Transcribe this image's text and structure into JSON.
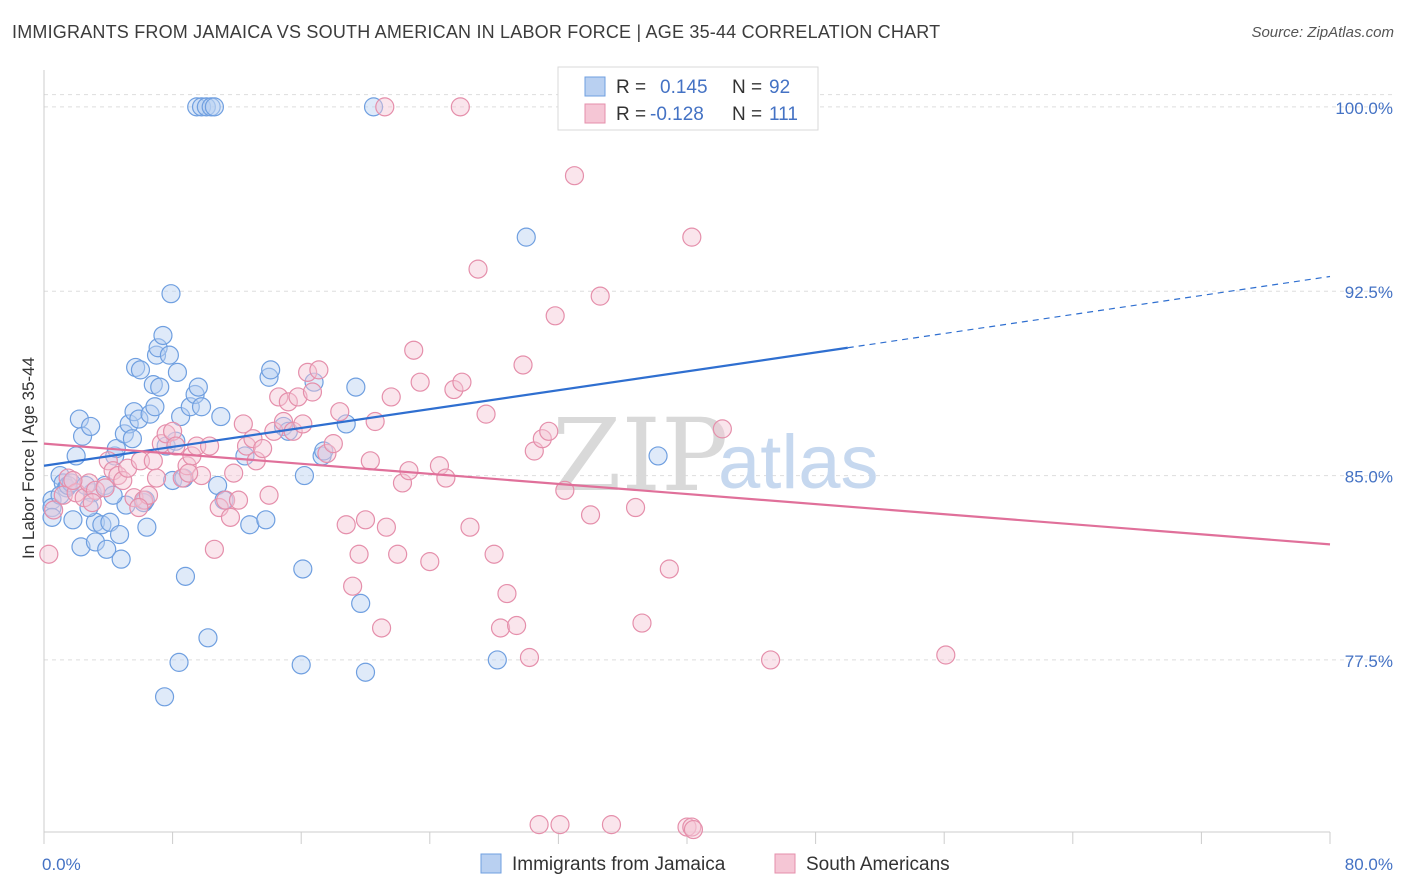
{
  "title": "IMMIGRANTS FROM JAMAICA VS SOUTH AMERICAN IN LABOR FORCE | AGE 35-44 CORRELATION CHART",
  "source": "Source: ZipAtlas.com",
  "watermark": {
    "zip": "ZIP",
    "atlas": "atlas"
  },
  "legend": {
    "r_label": "R =",
    "n_label": "N =",
    "rows": [
      {
        "r": "0.145",
        "n": "92"
      },
      {
        "r": "-0.128",
        "n": "111"
      }
    ]
  },
  "chart_data": {
    "type": "scatter",
    "ylabel": "In Labor Force | Age 35-44",
    "xlim": [
      0,
      80
    ],
    "ylim": [
      70.5,
      101.5
    ],
    "x_tick_labels": [
      "0.0%",
      "80.0%"
    ],
    "y_ticks": [
      77.5,
      85.0,
      92.5,
      100.0
    ],
    "y_tick_labels": [
      "77.5%",
      "85.0%",
      "92.5%",
      "100.0%"
    ],
    "grid": "horizontal dashed",
    "series": [
      {
        "name": "Immigrants from Jamaica",
        "color": "#6f9fe0",
        "fill": "#b9d0f1",
        "line_color": "#2f6fd0",
        "trend": {
          "x0": 0,
          "y0": 85.4,
          "x1": 50,
          "y1": 90.2,
          "dash_to_x": 80,
          "dash_to_y": 93.1
        },
        "points": [
          [
            0.5,
            84.0
          ],
          [
            0.5,
            83.7
          ],
          [
            0.5,
            83.3
          ],
          [
            1.0,
            85.0
          ],
          [
            1.2,
            84.7
          ],
          [
            1.4,
            84.5
          ],
          [
            1.0,
            84.2
          ],
          [
            1.5,
            84.6
          ],
          [
            2.0,
            85.8
          ],
          [
            2.2,
            87.3
          ],
          [
            2.4,
            86.6
          ],
          [
            2.9,
            87.0
          ],
          [
            3.0,
            84.3
          ],
          [
            3.2,
            83.1
          ],
          [
            2.8,
            83.7
          ],
          [
            1.8,
            83.2
          ],
          [
            2.3,
            82.1
          ],
          [
            3.2,
            82.3
          ],
          [
            3.6,
            83.0
          ],
          [
            3.9,
            82.0
          ],
          [
            4.1,
            83.1
          ],
          [
            4.4,
            85.8
          ],
          [
            4.5,
            86.1
          ],
          [
            4.7,
            82.6
          ],
          [
            4.8,
            81.6
          ],
          [
            5.0,
            86.7
          ],
          [
            5.1,
            83.8
          ],
          [
            5.3,
            87.1
          ],
          [
            5.5,
            86.5
          ],
          [
            5.6,
            87.6
          ],
          [
            5.7,
            89.4
          ],
          [
            5.9,
            87.3
          ],
          [
            6.0,
            89.3
          ],
          [
            6.2,
            83.9
          ],
          [
            6.4,
            82.9
          ],
          [
            6.6,
            87.5
          ],
          [
            6.8,
            88.7
          ],
          [
            6.9,
            87.8
          ],
          [
            7.0,
            89.9
          ],
          [
            7.1,
            90.2
          ],
          [
            7.2,
            88.6
          ],
          [
            7.4,
            90.7
          ],
          [
            7.6,
            86.2
          ],
          [
            7.8,
            89.9
          ],
          [
            7.9,
            92.4
          ],
          [
            8.0,
            84.8
          ],
          [
            8.2,
            86.4
          ],
          [
            8.3,
            89.2
          ],
          [
            8.5,
            87.4
          ],
          [
            8.7,
            84.9
          ],
          [
            8.8,
            80.9
          ],
          [
            9.1,
            87.8
          ],
          [
            9.4,
            88.3
          ],
          [
            9.6,
            88.6
          ],
          [
            9.8,
            87.8
          ],
          [
            10.2,
            78.4
          ],
          [
            10.8,
            84.6
          ],
          [
            11.0,
            87.4
          ],
          [
            11.2,
            84.0
          ],
          [
            12.5,
            85.8
          ],
          [
            12.8,
            83.0
          ],
          [
            13.8,
            83.2
          ],
          [
            14.0,
            89.0
          ],
          [
            14.1,
            89.3
          ],
          [
            14.9,
            87.0
          ],
          [
            15.2,
            86.8
          ],
          [
            16.2,
            85.0
          ],
          [
            16.0,
            77.3
          ],
          [
            16.1,
            81.2
          ],
          [
            16.8,
            88.8
          ],
          [
            17.3,
            85.8
          ],
          [
            17.4,
            86.0
          ],
          [
            18.8,
            87.1
          ],
          [
            19.4,
            88.6
          ],
          [
            19.7,
            79.8
          ],
          [
            20.0,
            77.0
          ],
          [
            9.5,
            100.0
          ],
          [
            9.8,
            100.0
          ],
          [
            10.1,
            100.0
          ],
          [
            10.4,
            100.0
          ],
          [
            10.6,
            100.0
          ],
          [
            20.5,
            100.0
          ],
          [
            28.2,
            77.5
          ],
          [
            30.0,
            94.7
          ],
          [
            38.2,
            85.8
          ],
          [
            7.5,
            76.0
          ],
          [
            8.4,
            77.4
          ],
          [
            3.8,
            84.6
          ],
          [
            4.3,
            84.2
          ],
          [
            1.7,
            84.7
          ],
          [
            2.6,
            84.6
          ],
          [
            6.3,
            84.0
          ]
        ]
      },
      {
        "name": "South Americans",
        "color": "#e58fab",
        "fill": "#f5c6d5",
        "line_color": "#e0709a",
        "trend": {
          "x0": 0,
          "y0": 86.3,
          "x1": 80,
          "y1": 82.2
        },
        "points": [
          [
            0.3,
            81.8
          ],
          [
            0.6,
            83.6
          ],
          [
            1.2,
            84.2
          ],
          [
            1.5,
            84.9
          ],
          [
            2.0,
            84.3
          ],
          [
            2.5,
            84.1
          ],
          [
            2.8,
            84.7
          ],
          [
            3.2,
            84.4
          ],
          [
            3.8,
            84.5
          ],
          [
            4.0,
            85.6
          ],
          [
            4.3,
            85.2
          ],
          [
            4.6,
            85.0
          ],
          [
            4.9,
            84.8
          ],
          [
            5.2,
            85.3
          ],
          [
            5.6,
            84.1
          ],
          [
            6.0,
            85.6
          ],
          [
            6.2,
            84.0
          ],
          [
            6.5,
            84.2
          ],
          [
            6.8,
            85.6
          ],
          [
            7.0,
            84.9
          ],
          [
            7.3,
            86.3
          ],
          [
            7.6,
            86.7
          ],
          [
            8.0,
            86.8
          ],
          [
            8.2,
            86.2
          ],
          [
            8.6,
            84.9
          ],
          [
            8.9,
            85.4
          ],
          [
            9.2,
            85.8
          ],
          [
            9.5,
            86.2
          ],
          [
            9.8,
            85.0
          ],
          [
            10.3,
            86.2
          ],
          [
            10.6,
            82.0
          ],
          [
            10.9,
            83.7
          ],
          [
            11.3,
            84.0
          ],
          [
            11.6,
            83.3
          ],
          [
            11.8,
            85.1
          ],
          [
            12.1,
            84.0
          ],
          [
            12.4,
            87.1
          ],
          [
            12.6,
            86.2
          ],
          [
            13.0,
            86.5
          ],
          [
            13.2,
            85.6
          ],
          [
            13.6,
            86.1
          ],
          [
            14.0,
            84.2
          ],
          [
            14.3,
            86.8
          ],
          [
            14.6,
            88.2
          ],
          [
            14.9,
            87.2
          ],
          [
            15.2,
            88.0
          ],
          [
            15.5,
            86.8
          ],
          [
            15.8,
            88.2
          ],
          [
            16.1,
            87.1
          ],
          [
            16.4,
            89.2
          ],
          [
            16.7,
            88.4
          ],
          [
            17.1,
            89.3
          ],
          [
            17.6,
            85.9
          ],
          [
            18.0,
            86.3
          ],
          [
            18.4,
            87.6
          ],
          [
            18.8,
            83.0
          ],
          [
            19.2,
            80.5
          ],
          [
            19.6,
            81.8
          ],
          [
            20.0,
            83.2
          ],
          [
            20.3,
            85.6
          ],
          [
            20.6,
            87.2
          ],
          [
            21.0,
            78.8
          ],
          [
            21.3,
            82.9
          ],
          [
            21.6,
            88.2
          ],
          [
            22.0,
            81.8
          ],
          [
            22.3,
            84.7
          ],
          [
            22.7,
            85.2
          ],
          [
            23.0,
            90.1
          ],
          [
            23.4,
            88.8
          ],
          [
            24.0,
            81.5
          ],
          [
            24.6,
            85.4
          ],
          [
            25.0,
            84.9
          ],
          [
            25.5,
            88.5
          ],
          [
            26.0,
            88.8
          ],
          [
            26.5,
            82.9
          ],
          [
            27.0,
            93.4
          ],
          [
            27.5,
            87.5
          ],
          [
            28.0,
            81.8
          ],
          [
            28.4,
            78.8
          ],
          [
            28.8,
            80.2
          ],
          [
            29.4,
            78.9
          ],
          [
            29.8,
            89.5
          ],
          [
            30.2,
            77.6
          ],
          [
            30.5,
            86.0
          ],
          [
            31.0,
            86.5
          ],
          [
            31.4,
            86.8
          ],
          [
            31.8,
            91.5
          ],
          [
            32.4,
            84.4
          ],
          [
            33.0,
            97.2
          ],
          [
            34.0,
            83.4
          ],
          [
            34.6,
            92.3
          ],
          [
            35.0,
            100.0
          ],
          [
            36.8,
            83.7
          ],
          [
            37.2,
            79.0
          ],
          [
            38.9,
            81.2
          ],
          [
            40.3,
            94.7
          ],
          [
            42.2,
            86.9
          ],
          [
            45.2,
            77.5
          ],
          [
            56.1,
            77.7
          ],
          [
            21.2,
            100.0
          ],
          [
            25.9,
            100.0
          ],
          [
            30.8,
            70.8
          ],
          [
            32.1,
            70.8
          ],
          [
            35.3,
            70.8
          ],
          [
            40.0,
            70.7
          ],
          [
            40.3,
            70.7
          ],
          [
            40.4,
            70.6
          ],
          [
            3.0,
            83.9
          ],
          [
            1.8,
            84.8
          ],
          [
            5.9,
            83.7
          ],
          [
            9.0,
            85.1
          ]
        ]
      }
    ]
  }
}
